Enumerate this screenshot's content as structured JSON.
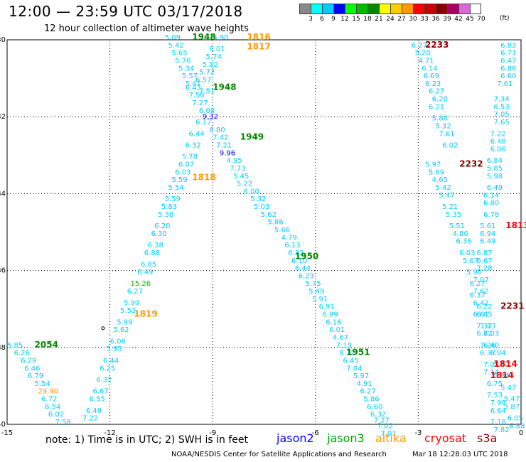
{
  "header": {
    "title": "12:00 — 23:59 UTC 03/17/2018",
    "subtitle": "12 hour collection of altimeter wave heights"
  },
  "color_scale": {
    "unit": "(ft)",
    "stops": [
      {
        "label": "3",
        "color": "#888888"
      },
      {
        "label": "6",
        "color": "#00ffff"
      },
      {
        "label": "9",
        "color": "#00ccff"
      },
      {
        "label": "12",
        "color": "#0000ff"
      },
      {
        "label": "15",
        "color": "#00ff00"
      },
      {
        "label": "18",
        "color": "#00bb00"
      },
      {
        "label": "21",
        "color": "#008800"
      },
      {
        "label": "24",
        "color": "#ffff00"
      },
      {
        "label": "27",
        "color": "#ffcc00"
      },
      {
        "label": "30",
        "color": "#ff9900"
      },
      {
        "label": "33",
        "color": "#ff0000"
      },
      {
        "label": "36",
        "color": "#cc0000"
      },
      {
        "label": "39",
        "color": "#880000"
      },
      {
        "label": "42",
        "color": "#aa0066"
      },
      {
        "label": "45",
        "color": "#dd66dd"
      },
      {
        "label": "70",
        "color": "#ffffff"
      }
    ]
  },
  "map": {
    "lon_labels": [
      "-15",
      "-12",
      "-9",
      "-6",
      "-3",
      "0"
    ],
    "lat_labels": [
      "-30",
      "-32",
      "-34",
      "-36",
      "-38",
      "-40"
    ],
    "tracks": [
      {
        "satellite": "jason3",
        "times": [
          {
            "text": "1948",
            "lon": -9.6,
            "lat": -30.0
          },
          {
            "text": "1948",
            "lon": -9.0,
            "lat": -31.3
          },
          {
            "text": "1949",
            "lon": -8.2,
            "lat": -32.6
          },
          {
            "text": "1950",
            "lon": -6.6,
            "lat": -35.7
          },
          {
            "text": "1951",
            "lon": -5.1,
            "lat": -38.2
          },
          {
            "text": "2054",
            "lon": -14.2,
            "lat": -38.0
          }
        ]
      },
      {
        "satellite": "altika",
        "times": [
          {
            "text": "1816",
            "lon": -8.0,
            "lat": -30.0
          },
          {
            "text": "1817",
            "lon": -8.0,
            "lat": -30.25
          },
          {
            "text": "1818",
            "lon": -9.6,
            "lat": -33.65
          },
          {
            "text": "1819",
            "lon": -11.3,
            "lat": -37.2
          }
        ]
      },
      {
        "satellite": "cryosat",
        "times": [
          {
            "text": "2233",
            "lon": -2.8,
            "lat": -30.2
          },
          {
            "text": "2232",
            "lon": -1.8,
            "lat": -33.3
          },
          {
            "text": "2231",
            "lon": -0.6,
            "lat": -37.0
          }
        ]
      },
      {
        "satellite": "s3a",
        "times": [
          {
            "text": "1813",
            "lon": -0.45,
            "lat": -34.9
          },
          {
            "text": "1814",
            "lon": -0.8,
            "lat": -38.5
          },
          {
            "text": "1814",
            "lon": -0.9,
            "lat": -38.8
          }
        ]
      }
    ],
    "wave_heights": [
      {
        "v": "5.09",
        "lon": -10.4,
        "lat": -30.0
      },
      {
        "v": "5.90",
        "lon": -9.0,
        "lat": -30.0
      },
      {
        "v": "5.42",
        "lon": -10.3,
        "lat": -30.2
      },
      {
        "v": "6.01",
        "lon": -9.1,
        "lat": -30.3
      },
      {
        "v": "5.65",
        "lon": -10.2,
        "lat": -30.4
      },
      {
        "v": "5.74",
        "lon": -9.2,
        "lat": -30.5
      },
      {
        "v": "5.76",
        "lon": -10.1,
        "lat": -30.6
      },
      {
        "v": "5.82",
        "lon": -9.3,
        "lat": -30.7
      },
      {
        "v": "5.34",
        "lon": -10.0,
        "lat": -30.8
      },
      {
        "v": "5.72",
        "lon": -9.4,
        "lat": -30.9
      },
      {
        "v": "5.57",
        "lon": -9.9,
        "lat": -31.0
      },
      {
        "v": "5.41",
        "lon": -9.8,
        "lat": -31.2
      },
      {
        "v": "6.57",
        "lon": -9.5,
        "lat": -31.1
      },
      {
        "v": "6.43",
        "lon": -9.8,
        "lat": -31.3
      },
      {
        "v": "7.51",
        "lon": -9.4,
        "lat": -31.4
      },
      {
        "v": "7.56",
        "lon": -9.7,
        "lat": -31.5
      },
      {
        "v": "7.27",
        "lon": -9.6,
        "lat": -31.7
      },
      {
        "v": "6.08",
        "lon": -9.4,
        "lat": -31.9
      },
      {
        "v": "9.32",
        "lon": -9.3,
        "lat": -32.05
      },
      {
        "v": "6.17",
        "lon": -9.5,
        "lat": -32.2
      },
      {
        "v": "6.80",
        "lon": -9.1,
        "lat": -32.4
      },
      {
        "v": "6.44",
        "lon": -9.7,
        "lat": -32.5
      },
      {
        "v": "7.42",
        "lon": -9.0,
        "lat": -32.6
      },
      {
        "v": "6.32",
        "lon": -9.8,
        "lat": -32.8
      },
      {
        "v": "7.21",
        "lon": -8.9,
        "lat": -32.8
      },
      {
        "v": "9.96",
        "lon": -8.8,
        "lat": -33.0
      },
      {
        "v": "5.78",
        "lon": -9.9,
        "lat": -33.1
      },
      {
        "v": "4.95",
        "lon": -8.6,
        "lat": -33.2
      },
      {
        "v": "6.07",
        "lon": -10.0,
        "lat": -33.3
      },
      {
        "v": "7.73",
        "lon": -8.5,
        "lat": -33.4
      },
      {
        "v": "6.03",
        "lon": -10.1,
        "lat": -33.5
      },
      {
        "v": "5.45",
        "lon": -8.4,
        "lat": -33.6
      },
      {
        "v": "5.59",
        "lon": -10.2,
        "lat": -33.7
      },
      {
        "v": "5.22",
        "lon": -8.3,
        "lat": -33.8
      },
      {
        "v": "5.54",
        "lon": -10.3,
        "lat": -33.9
      },
      {
        "v": "6.00",
        "lon": -8.1,
        "lat": -34.0
      },
      {
        "v": "5.59",
        "lon": -10.4,
        "lat": -34.2
      },
      {
        "v": "5.32",
        "lon": -7.9,
        "lat": -34.2
      },
      {
        "v": "5.83",
        "lon": -10.5,
        "lat": -34.4
      },
      {
        "v": "5.03",
        "lon": -7.8,
        "lat": -34.4
      },
      {
        "v": "5.38",
        "lon": -10.6,
        "lat": -34.6
      },
      {
        "v": "5.62",
        "lon": -7.6,
        "lat": -34.6
      },
      {
        "v": "6.20",
        "lon": -10.7,
        "lat": -34.9
      },
      {
        "v": "5.86",
        "lon": -7.4,
        "lat": -34.8
      },
      {
        "v": "6.30",
        "lon": -10.8,
        "lat": -35.1
      },
      {
        "v": "5.66",
        "lon": -7.2,
        "lat": -35.0
      },
      {
        "v": "6.38",
        "lon": -10.9,
        "lat": -35.4
      },
      {
        "v": "4.79",
        "lon": -7.0,
        "lat": -35.2
      },
      {
        "v": "6.88",
        "lon": -11.0,
        "lat": -35.6
      },
      {
        "v": "6.13",
        "lon": -6.9,
        "lat": -35.4
      },
      {
        "v": "6.85",
        "lon": -11.1,
        "lat": -35.9
      },
      {
        "v": "6.33",
        "lon": -6.8,
        "lat": -35.6
      },
      {
        "v": "6.49",
        "lon": -11.2,
        "lat": -36.1
      },
      {
        "v": "6.10",
        "lon": -6.7,
        "lat": -35.8
      },
      {
        "v": "15.26",
        "lon": -11.4,
        "lat": -36.4
      },
      {
        "v": "6.44",
        "lon": -6.6,
        "lat": -36.0
      },
      {
        "v": "6.27",
        "lon": -11.5,
        "lat": -36.6
      },
      {
        "v": "6.23",
        "lon": -6.5,
        "lat": -36.2
      },
      {
        "v": "5.99",
        "lon": -11.6,
        "lat": -36.9
      },
      {
        "v": "5.75",
        "lon": -6.3,
        "lat": -36.4
      },
      {
        "v": "5.52",
        "lon": -11.7,
        "lat": -37.1
      },
      {
        "v": "5.49",
        "lon": -6.2,
        "lat": -36.6
      },
      {
        "v": "5.99",
        "lon": -11.8,
        "lat": -37.4
      },
      {
        "v": "5.91",
        "lon": -6.1,
        "lat": -36.8
      },
      {
        "v": "5.62",
        "lon": -11.9,
        "lat": -37.6
      },
      {
        "v": "6.91",
        "lon": -5.9,
        "lat": -37.0
      },
      {
        "v": "6.06",
        "lon": -12.0,
        "lat": -37.9
      },
      {
        "v": "6.99",
        "lon": -5.8,
        "lat": -37.2
      },
      {
        "v": "5.93",
        "lon": -12.1,
        "lat": -38.1
      },
      {
        "v": "6.16",
        "lon": -5.7,
        "lat": -37.4
      },
      {
        "v": "6.44",
        "lon": -12.2,
        "lat": -38.4
      },
      {
        "v": "6.01",
        "lon": -5.6,
        "lat": -37.6
      },
      {
        "v": "6.25",
        "lon": -12.3,
        "lat": -38.6
      },
      {
        "v": "4.67",
        "lon": -5.5,
        "lat": -37.8
      },
      {
        "v": "6.32",
        "lon": -12.4,
        "lat": -38.9
      },
      {
        "v": "7.19",
        "lon": -5.4,
        "lat": -38.0
      },
      {
        "v": "6.67",
        "lon": -12.5,
        "lat": -39.2
      },
      {
        "v": "8.12",
        "lon": -5.3,
        "lat": -38.2
      },
      {
        "v": "6.55",
        "lon": -12.6,
        "lat": -39.4
      },
      {
        "v": "6.45",
        "lon": -5.2,
        "lat": -38.4
      },
      {
        "v": "6.49",
        "lon": -12.7,
        "lat": -39.7
      },
      {
        "v": "7.04",
        "lon": -5.1,
        "lat": -38.6
      },
      {
        "v": "7.22",
        "lon": -12.8,
        "lat": -39.9
      },
      {
        "v": "5.97",
        "lon": -4.9,
        "lat": -38.8
      },
      {
        "v": "4.91",
        "lon": -4.8,
        "lat": -39.0
      },
      {
        "v": "6.27",
        "lon": -4.7,
        "lat": -39.2
      },
      {
        "v": "5.86",
        "lon": -4.6,
        "lat": -39.4
      },
      {
        "v": "6.60",
        "lon": -4.5,
        "lat": -39.6
      },
      {
        "v": "6.32",
        "lon": -4.4,
        "lat": -39.8
      },
      {
        "v": "7.27",
        "lon": -4.3,
        "lat": -39.95
      },
      {
        "v": "7.02",
        "lon": -4.2,
        "lat": -40.1
      },
      {
        "v": "7.01",
        "lon": -4.1,
        "lat": -40.3
      },
      {
        "v": "5.85",
        "lon": -15.0,
        "lat": -38.0
      },
      {
        "v": "6.26",
        "lon": -14.8,
        "lat": -38.2
      },
      {
        "v": "6.29",
        "lon": -14.6,
        "lat": -38.4
      },
      {
        "v": "6.46",
        "lon": -14.5,
        "lat": -38.6
      },
      {
        "v": "6.79",
        "lon": -14.4,
        "lat": -38.8
      },
      {
        "v": "5.54",
        "lon": -14.2,
        "lat": -39.0
      },
      {
        "v": "29.40",
        "lon": -14.1,
        "lat": -39.2
      },
      {
        "v": "6.72",
        "lon": -14.0,
        "lat": -39.4
      },
      {
        "v": "6.54",
        "lon": -13.9,
        "lat": -39.6
      },
      {
        "v": "6.02",
        "lon": -13.8,
        "lat": -39.8
      },
      {
        "v": "7.58",
        "lon": -13.6,
        "lat": -40.0
      },
      {
        "v": "6.27",
        "lon": -3.2,
        "lat": -30.2
      },
      {
        "v": "5.20",
        "lon": -3.1,
        "lat": -30.4
      },
      {
        "v": "4.71",
        "lon": -3.0,
        "lat": -30.6
      },
      {
        "v": "6.14",
        "lon": -2.9,
        "lat": -30.8
      },
      {
        "v": "6.69",
        "lon": -2.85,
        "lat": -31.0
      },
      {
        "v": "6.23",
        "lon": -2.8,
        "lat": -31.2
      },
      {
        "v": "6.27",
        "lon": -2.7,
        "lat": -31.4
      },
      {
        "v": "6.20",
        "lon": -2.6,
        "lat": -31.6
      },
      {
        "v": "6.21",
        "lon": -2.7,
        "lat": -31.8
      },
      {
        "v": "5.80",
        "lon": -2.6,
        "lat": -32.1
      },
      {
        "v": "5.32",
        "lon": -2.5,
        "lat": -32.3
      },
      {
        "v": "7.61",
        "lon": -2.4,
        "lat": -32.5
      },
      {
        "v": "6.02",
        "lon": -2.3,
        "lat": -32.8
      },
      {
        "v": "5.97",
        "lon": -2.8,
        "lat": -33.3
      },
      {
        "v": "5.69",
        "lon": -2.7,
        "lat": -33.5
      },
      {
        "v": "4.65",
        "lon": -2.6,
        "lat": -33.7
      },
      {
        "v": "5.42",
        "lon": -2.5,
        "lat": -33.9
      },
      {
        "v": "5.47",
        "lon": -2.4,
        "lat": -34.1
      },
      {
        "v": "5.21",
        "lon": -2.3,
        "lat": -34.4
      },
      {
        "v": "5.35",
        "lon": -2.2,
        "lat": -34.6
      },
      {
        "v": "5.51",
        "lon": -2.1,
        "lat": -34.9
      },
      {
        "v": "4.86",
        "lon": -2.0,
        "lat": -35.1
      },
      {
        "v": "6.36",
        "lon": -1.9,
        "lat": -35.3
      },
      {
        "v": "6.03",
        "lon": -1.8,
        "lat": -35.6
      },
      {
        "v": "5.67",
        "lon": -1.7,
        "lat": -35.8
      },
      {
        "v": "5.90",
        "lon": -1.6,
        "lat": -36.1
      },
      {
        "v": "6.27",
        "lon": -1.5,
        "lat": -36.4
      },
      {
        "v": "6.37",
        "lon": -1.5,
        "lat": -36.7
      },
      {
        "v": "6.42",
        "lon": -1.4,
        "lat": -36.9
      },
      {
        "v": "6.61",
        "lon": -1.4,
        "lat": -37.2
      },
      {
        "v": "7.37",
        "lon": -1.3,
        "lat": -37.5
      },
      {
        "v": "6.72",
        "lon": -1.3,
        "lat": -37.7
      },
      {
        "v": "7.26",
        "lon": -1.2,
        "lat": -38.0
      },
      {
        "v": "6.37",
        "lon": -1.2,
        "lat": -38.2
      },
      {
        "v": "7.02",
        "lon": -1.1,
        "lat": -38.5
      },
      {
        "v": "7.14",
        "lon": -1.1,
        "lat": -38.7
      },
      {
        "v": "6.75",
        "lon": -1.0,
        "lat": -39.0
      },
      {
        "v": "7.53",
        "lon": -1.0,
        "lat": -39.3
      },
      {
        "v": "7.99",
        "lon": -0.9,
        "lat": -39.5
      },
      {
        "v": "6.64",
        "lon": -0.9,
        "lat": -39.7
      },
      {
        "v": "7.18",
        "lon": -0.9,
        "lat": -40.0
      },
      {
        "v": "7.82",
        "lon": -0.8,
        "lat": -40.2
      },
      {
        "v": "6.83",
        "lon": -0.6,
        "lat": -30.2
      },
      {
        "v": "6.71",
        "lon": -0.6,
        "lat": -30.4
      },
      {
        "v": "6.47",
        "lon": -0.6,
        "lat": -30.6
      },
      {
        "v": "6.86",
        "lon": -0.6,
        "lat": -30.8
      },
      {
        "v": "6.60",
        "lon": -0.6,
        "lat": -31.0
      },
      {
        "v": "7.61",
        "lon": -0.7,
        "lat": -31.2
      },
      {
        "v": "7.34",
        "lon": -0.8,
        "lat": -31.6
      },
      {
        "v": "6.53",
        "lon": -0.8,
        "lat": -31.8
      },
      {
        "v": "7.05",
        "lon": -0.8,
        "lat": -32.0
      },
      {
        "v": "7.65",
        "lon": -0.8,
        "lat": -32.2
      },
      {
        "v": "7.22",
        "lon": -0.9,
        "lat": -32.5
      },
      {
        "v": "6.48",
        "lon": -0.9,
        "lat": -32.7
      },
      {
        "v": "6.06",
        "lon": -0.9,
        "lat": -32.9
      },
      {
        "v": "6.84",
        "lon": -1.0,
        "lat": -33.2
      },
      {
        "v": "5.85",
        "lon": -1.0,
        "lat": -33.4
      },
      {
        "v": "5.98",
        "lon": -1.0,
        "lat": -33.6
      },
      {
        "v": "6.49",
        "lon": -1.0,
        "lat": -33.9
      },
      {
        "v": "6.14",
        "lon": -1.1,
        "lat": -34.1
      },
      {
        "v": "6.80",
        "lon": -1.1,
        "lat": -34.3
      },
      {
        "v": "6.78",
        "lon": -1.1,
        "lat": -34.6
      },
      {
        "v": "5.61",
        "lon": -1.2,
        "lat": -34.9
      },
      {
        "v": "6.94",
        "lon": -1.2,
        "lat": -35.1
      },
      {
        "v": "6.49",
        "lon": -1.2,
        "lat": -35.3
      },
      {
        "v": "6.87",
        "lon": -1.3,
        "lat": -35.6
      },
      {
        "v": "6.67",
        "lon": -1.3,
        "lat": -35.8
      },
      {
        "v": "7.28",
        "lon": -1.3,
        "lat": -36.0
      },
      {
        "v": "7.07",
        "lon": -1.4,
        "lat": -36.3
      },
      {
        "v": "7.62",
        "lon": -1.4,
        "lat": -36.6
      },
      {
        "v": "6.22",
        "lon": -1.3,
        "lat": -37.0
      },
      {
        "v": "6.05",
        "lon": -1.3,
        "lat": -37.2
      },
      {
        "v": "7.13",
        "lon": -1.2,
        "lat": -37.5
      },
      {
        "v": "6.03",
        "lon": -1.1,
        "lat": -37.7
      },
      {
        "v": "6.40",
        "lon": -1.1,
        "lat": -38.0
      },
      {
        "v": "6.04",
        "lon": -0.9,
        "lat": -38.2
      },
      {
        "v": "5.90",
        "lon": -0.8,
        "lat": -38.5
      },
      {
        "v": "5.84",
        "lon": -0.8,
        "lat": -38.8
      },
      {
        "v": "5.47",
        "lon": -0.6,
        "lat": -39.1
      },
      {
        "v": "5.47",
        "lon": -0.5,
        "lat": -39.4
      },
      {
        "v": "5.87",
        "lon": -0.5,
        "lat": -39.6
      },
      {
        "v": "6.05",
        "lon": -0.4,
        "lat": -39.9
      },
      {
        "v": "6.88",
        "lon": -0.35,
        "lat": -40.1
      }
    ]
  },
  "legend": {
    "note": "note: 1) Time is in UTC; 2) SWH is in feet",
    "satellites": [
      {
        "label": "jason2",
        "color": "#0000ff"
      },
      {
        "label": "jason3",
        "color": "#00aa00"
      },
      {
        "label": "altika",
        "color": "#ff9900"
      },
      {
        "label": "cryosat",
        "color": "#ff0000"
      },
      {
        "label": "s3a",
        "color": "#880000"
      }
    ]
  },
  "footer": {
    "center": "NOAA/NESDIS Center for Satellite Applications and Research",
    "generated": "Mar 18 12:28:03 UTC 2018"
  }
}
